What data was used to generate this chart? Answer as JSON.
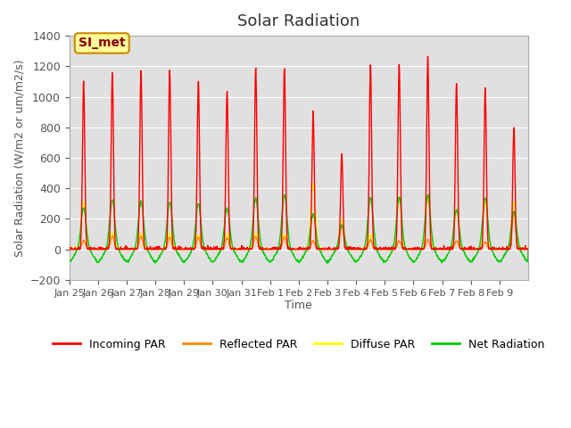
{
  "title": "Solar Radiation",
  "ylabel": "Solar Radiation (W/m2 or um/m2/s)",
  "xlabel": "Time",
  "ylim": [
    -200,
    1400
  ],
  "yticks": [
    -200,
    0,
    200,
    400,
    600,
    800,
    1000,
    1200,
    1400
  ],
  "xlabels": [
    "Jan 25",
    "Jan 26",
    "Jan 27",
    "Jan 28",
    "Jan 29",
    "Jan 30",
    "Jan 31",
    "Feb 1",
    "Feb 2",
    "Feb 3",
    "Feb 4",
    "Feb 5",
    "Feb 6",
    "Feb 7",
    "Feb 8",
    "Feb 9"
  ],
  "colors": {
    "incoming": "#ff0000",
    "reflected": "#ff8800",
    "diffuse": "#ffff00",
    "net": "#00cc00"
  },
  "bg_color": "#e0e0e0",
  "annotation_text": "SI_met",
  "annotation_bg": "#ffff99",
  "annotation_border": "#cc8800",
  "legend_labels": [
    "Incoming PAR",
    "Reflected PAR",
    "Diffuse PAR",
    "Net Radiation"
  ],
  "n_days": 16,
  "incoming_peaks": [
    1100,
    1160,
    1170,
    1175,
    1100,
    1040,
    1190,
    1195,
    900,
    630,
    1215,
    1220,
    1250,
    1085,
    1060,
    800
  ],
  "reflected_peaks": [
    60,
    90,
    85,
    80,
    80,
    75,
    85,
    80,
    55,
    160,
    60,
    55,
    65,
    55,
    50,
    250
  ],
  "diffuse_peaks": [
    310,
    105,
    100,
    100,
    95,
    100,
    100,
    95,
    420,
    195,
    95,
    340,
    335,
    260,
    310,
    305
  ],
  "net_peaks": [
    275,
    325,
    315,
    310,
    300,
    270,
    335,
    355,
    230,
    160,
    340,
    340,
    355,
    260,
    335,
    250
  ],
  "net_min": -80
}
